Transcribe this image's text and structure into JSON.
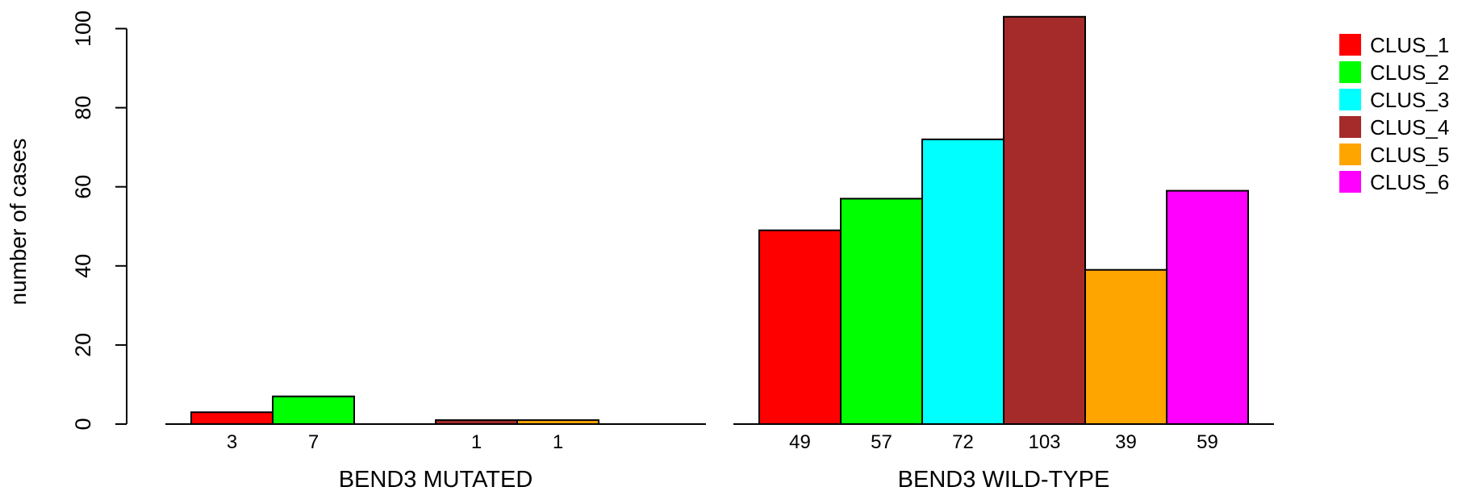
{
  "chart_data": {
    "type": "bar",
    "ylabel": "number of cases",
    "ylim": [
      0,
      110
    ],
    "y_ticks": [
      0,
      20,
      40,
      60,
      80,
      100
    ],
    "y_tick_labels": [
      "0",
      "20",
      "40",
      "60",
      "80",
      "100"
    ],
    "grid": false,
    "legend_position": "top-right",
    "groups": [
      {
        "label": "BEND3 MUTATED",
        "values": [
          3,
          7,
          0,
          1,
          1,
          0
        ],
        "value_labels": [
          "3",
          "7",
          "",
          "1",
          "1",
          ""
        ]
      },
      {
        "label": "BEND3 WILD-TYPE",
        "values": [
          49,
          57,
          72,
          103,
          39,
          59
        ],
        "value_labels": [
          "49",
          "57",
          "72",
          "103",
          "39",
          "59"
        ]
      }
    ],
    "series": [
      {
        "name": "CLUS_1",
        "color": "#ff0000"
      },
      {
        "name": "CLUS_2",
        "color": "#00ff00"
      },
      {
        "name": "CLUS_3",
        "color": "#00ffff"
      },
      {
        "name": "CLUS_4",
        "color": "#a52a2a"
      },
      {
        "name": "CLUS_5",
        "color": "#ffa500"
      },
      {
        "name": "CLUS_6",
        "color": "#ff00ff"
      }
    ]
  }
}
